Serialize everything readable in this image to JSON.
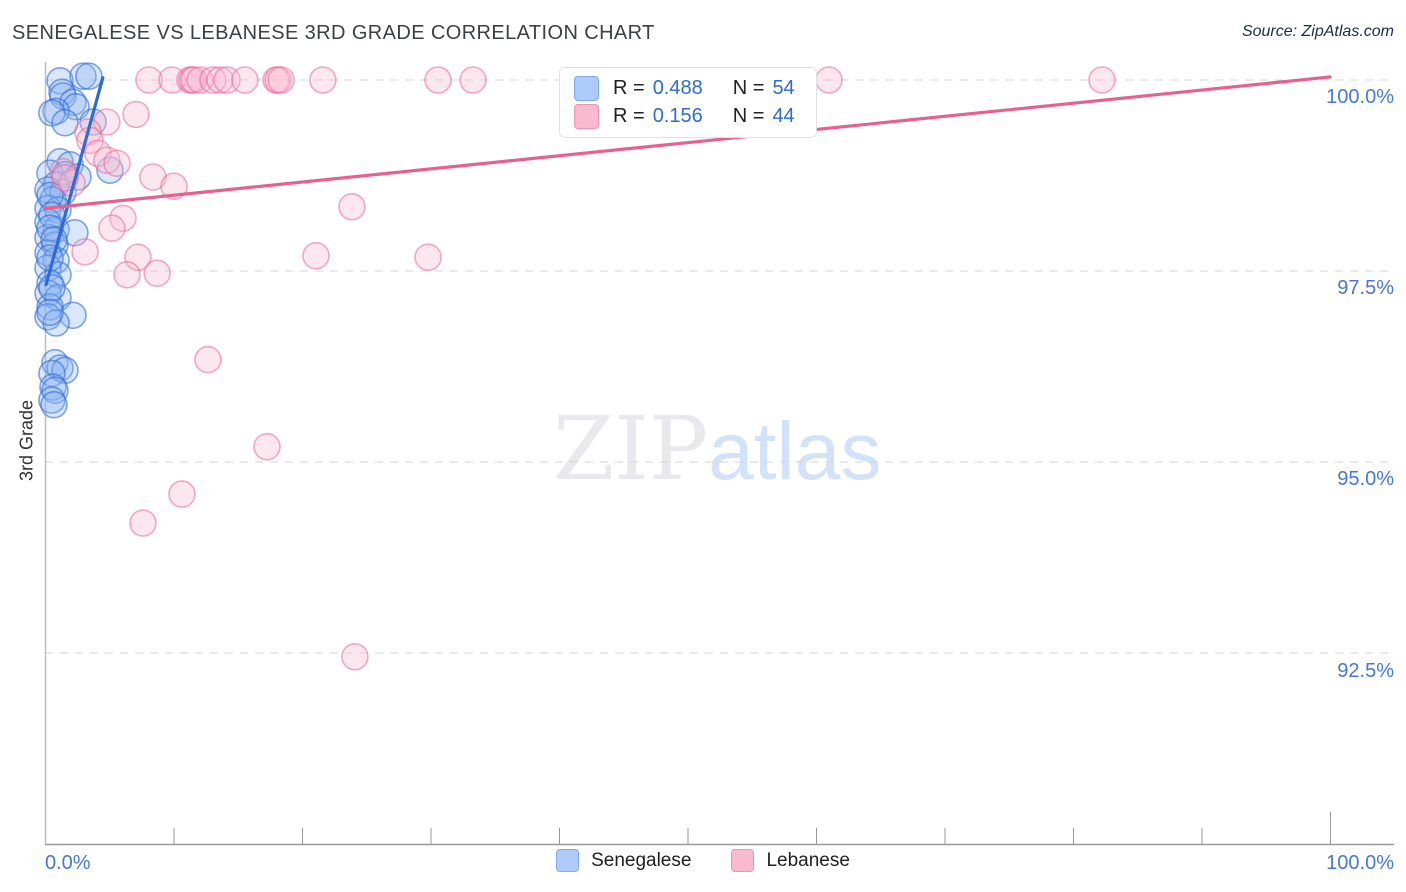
{
  "header": {
    "title": "SENEGALESE VS LEBANESE 3RD GRADE CORRELATION CHART",
    "source": "Source: ZipAtlas.com"
  },
  "watermark": {
    "zip": "ZIP",
    "atlas": "atlas"
  },
  "stats_box": {
    "rows": [
      {
        "series": "Senegalese",
        "r_label": "R =",
        "r_value": "0.488",
        "n_label": "N =",
        "n_value": "54",
        "swatch_color": "#aecbfa"
      },
      {
        "series": "Lebanese",
        "r_label": "R =",
        "r_value": "0.156",
        "n_label": "N =",
        "n_value": "44",
        "swatch_color": "#f9b9ce"
      }
    ]
  },
  "axes": {
    "y_label": "3rd Grade",
    "y_ticks": [
      "100.0%",
      "97.5%",
      "95.0%",
      "92.5%"
    ],
    "x_tick_left": "0.0%",
    "x_tick_right": "100.0%"
  },
  "bottom_legend": {
    "items": [
      {
        "label": "Senegalese",
        "color": "#aecbfa",
        "border": "#7baaf7"
      },
      {
        "label": "Lebanese",
        "color": "#f9b9ce",
        "border": "#f191b6"
      }
    ]
  },
  "colors": {
    "tick_label_blue": "#4577d9",
    "stat_value_blue": "#2e6bd4",
    "gridline": "#d4d4d4",
    "axis": "#9a9a9a",
    "senegalese_line": "#2f6bd5",
    "lebanese_line": "#e8618c"
  },
  "chart_data": {
    "type": "scatter",
    "title": "SENEGALESE VS LEBANESE 3RD GRADE CORRELATION CHART",
    "xlabel": "",
    "ylabel": "3rd Grade",
    "xlim": [
      0,
      105
    ],
    "ylim": [
      90,
      100.3
    ],
    "x_axis_ticks": [
      10,
      20,
      30,
      40,
      50,
      60,
      70,
      80,
      90,
      100
    ],
    "y_gridlines": [
      100,
      97.5,
      95,
      92.5
    ],
    "grid": "dashed horizontal",
    "legend_position": "top-center and bottom-center",
    "series": [
      {
        "name": "Senegalese",
        "R": 0.488,
        "N": 54,
        "stroke": "rgba(47,107,213,0.6)",
        "fill": "rgba(141,180,244,0.33)",
        "line_color": "#2f6bd5",
        "trend": {
          "x1": 0.08,
          "y1": 97.32,
          "x2": 4.5,
          "y2": 100.03
        },
        "points": [
          [
            1.17,
            99.99
          ],
          [
            2.96,
            100.05
          ],
          [
            3.42,
            100.05
          ],
          [
            1.32,
            99.84
          ],
          [
            1.4,
            99.79
          ],
          [
            2.18,
            99.71
          ],
          [
            2.41,
            99.65
          ],
          [
            0.86,
            99.59
          ],
          [
            0.54,
            99.57
          ],
          [
            1.56,
            99.44
          ],
          [
            3.74,
            99.45
          ],
          [
            5.06,
            98.82
          ],
          [
            1.17,
            98.93
          ],
          [
            1.95,
            98.89
          ],
          [
            0.39,
            98.78
          ],
          [
            1.56,
            98.76
          ],
          [
            2.57,
            98.73
          ],
          [
            0.86,
            98.63
          ],
          [
            0.23,
            98.56
          ],
          [
            1.4,
            98.53
          ],
          [
            0.62,
            98.43
          ],
          [
            0.23,
            98.32
          ],
          [
            1.01,
            98.3
          ],
          [
            0.23,
            98.14
          ],
          [
            0.86,
            98.04
          ],
          [
            2.33,
            98.0
          ],
          [
            0.23,
            97.94
          ],
          [
            0.78,
            97.84
          ],
          [
            0.23,
            97.74
          ],
          [
            0.86,
            97.64
          ],
          [
            0.23,
            97.54
          ],
          [
            1.01,
            97.45
          ],
          [
            0.39,
            97.34
          ],
          [
            0.23,
            97.21
          ],
          [
            1.01,
            97.15
          ],
          [
            0.39,
            97.03
          ],
          [
            2.18,
            96.92
          ],
          [
            0.23,
            96.9
          ],
          [
            0.86,
            96.82
          ],
          [
            0.39,
            98.49
          ],
          [
            0.54,
            98.23
          ],
          [
            0.39,
            98.06
          ],
          [
            0.7,
            97.91
          ],
          [
            0.39,
            97.67
          ],
          [
            0.54,
            97.28
          ],
          [
            0.39,
            96.96
          ],
          [
            0.78,
            96.3
          ],
          [
            1.17,
            96.23
          ],
          [
            1.56,
            96.2
          ],
          [
            0.54,
            96.16
          ],
          [
            0.62,
            95.98
          ],
          [
            0.78,
            95.94
          ],
          [
            0.54,
            95.81
          ],
          [
            0.7,
            95.75
          ]
        ]
      },
      {
        "name": "Lebanese",
        "R": 0.156,
        "N": 44,
        "stroke": "rgba(235,100,150,0.55)",
        "fill": "rgba(248,187,208,0.35)",
        "line_color": "#e8618c",
        "trend": {
          "x1": 0.0,
          "y1": 98.32,
          "x2": 100.0,
          "y2": 100.04
        },
        "points": [
          [
            8.09,
            100.0
          ],
          [
            9.88,
            100.0
          ],
          [
            11.28,
            100.0
          ],
          [
            11.44,
            100.0
          ],
          [
            11.59,
            100.0
          ],
          [
            12.06,
            100.0
          ],
          [
            13.07,
            100.0
          ],
          [
            13.62,
            100.0
          ],
          [
            14.16,
            100.0
          ],
          [
            15.56,
            100.0
          ],
          [
            17.98,
            100.0
          ],
          [
            18.13,
            100.0
          ],
          [
            18.37,
            100.0
          ],
          [
            21.63,
            100.0
          ],
          [
            30.58,
            100.0
          ],
          [
            33.31,
            100.0
          ],
          [
            61.01,
            100.0
          ],
          [
            82.26,
            100.0
          ],
          [
            7.08,
            99.55
          ],
          [
            4.82,
            99.45
          ],
          [
            3.35,
            99.32
          ],
          [
            3.5,
            99.21
          ],
          [
            4.12,
            99.04
          ],
          [
            4.82,
            98.95
          ],
          [
            5.6,
            98.91
          ],
          [
            8.4,
            98.73
          ],
          [
            10.04,
            98.61
          ],
          [
            1.4,
            98.8
          ],
          [
            2.1,
            98.65
          ],
          [
            1.56,
            98.72
          ],
          [
            6.07,
            98.19
          ],
          [
            5.21,
            98.06
          ],
          [
            3.11,
            97.75
          ],
          [
            7.24,
            97.68
          ],
          [
            6.38,
            97.45
          ],
          [
            8.72,
            97.47
          ],
          [
            23.89,
            98.34
          ],
          [
            21.09,
            97.7
          ],
          [
            29.81,
            97.68
          ],
          [
            12.68,
            96.34
          ],
          [
            17.28,
            95.2
          ],
          [
            10.66,
            94.58
          ],
          [
            7.63,
            94.2
          ],
          [
            24.12,
            92.45
          ]
        ]
      }
    ]
  }
}
